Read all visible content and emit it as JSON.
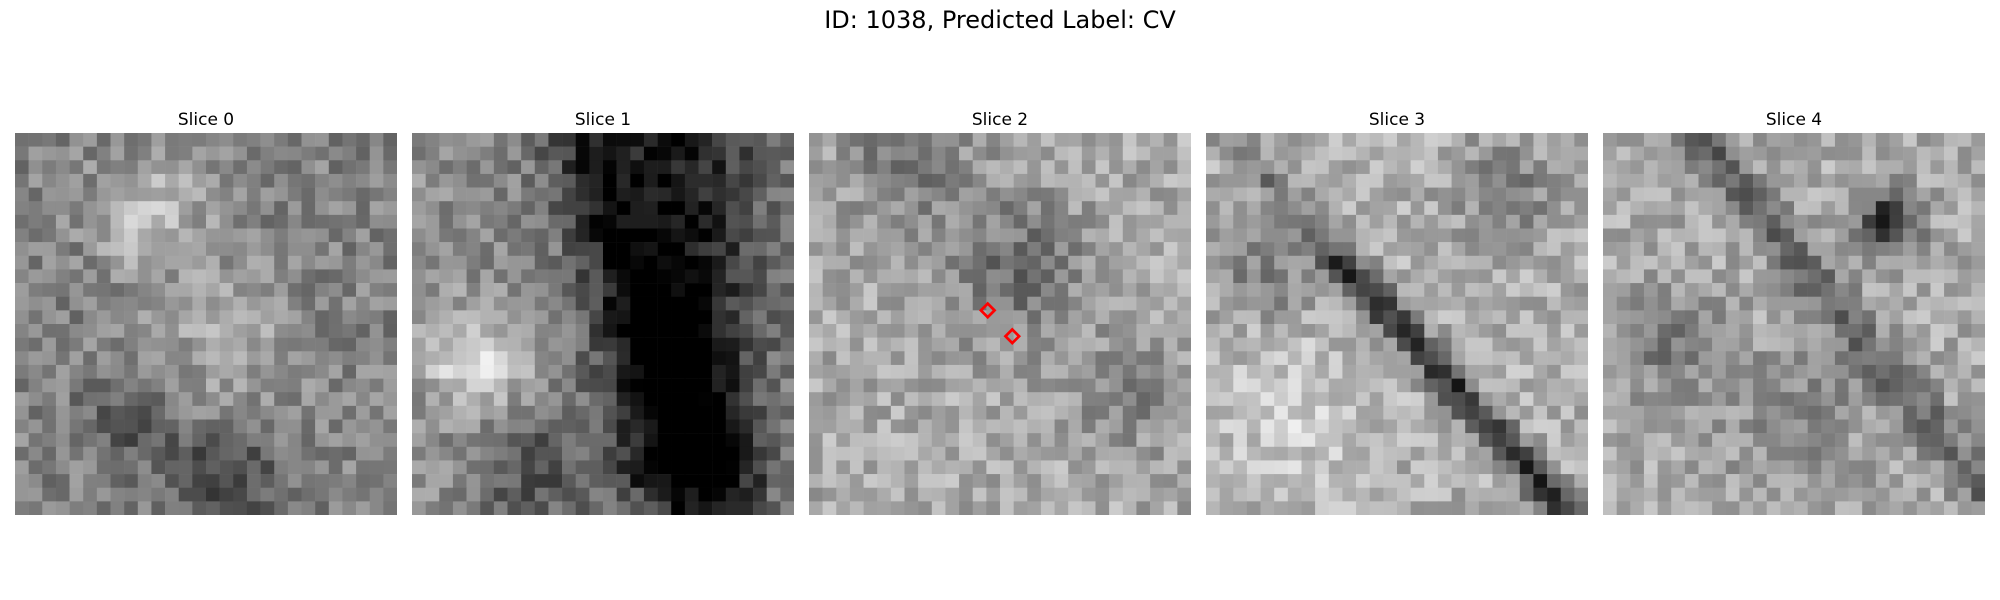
{
  "figure": {
    "title": "ID: 1038, Predicted Label: CV"
  },
  "colormap": "gray",
  "marker_color": "#ff0000",
  "slices": [
    {
      "title": "Slice 0",
      "seed": 11,
      "style": "blob",
      "markers": []
    },
    {
      "title": "Slice 1",
      "seed": 23,
      "style": "dark-region",
      "markers": []
    },
    {
      "title": "Slice 2",
      "seed": 37,
      "style": "light-noise",
      "markers": [
        {
          "shape": "diamond"
        },
        {
          "shape": "diamond"
        }
      ]
    },
    {
      "title": "Slice 3",
      "seed": 41,
      "style": "diagonal-band",
      "markers": []
    },
    {
      "title": "Slice 4",
      "seed": 53,
      "style": "streaks",
      "markers": []
    }
  ]
}
